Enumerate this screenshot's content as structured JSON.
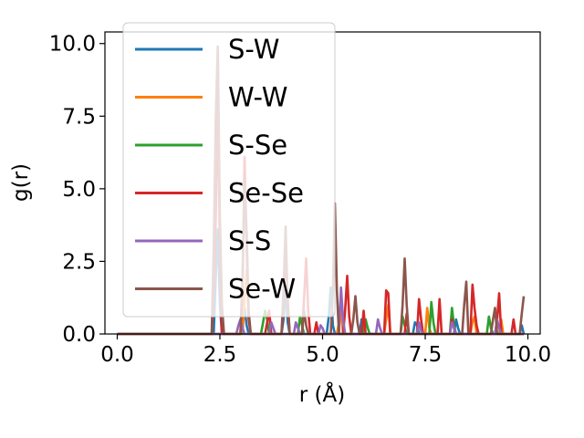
{
  "chart_data": {
    "type": "line",
    "title": "",
    "xlabel": "r (Å)",
    "ylabel": "g(r)",
    "xlim": [
      -0.3,
      10.3
    ],
    "ylim": [
      0,
      10.4
    ],
    "x_ticks": [
      0.0,
      2.5,
      5.0,
      7.5,
      10.0
    ],
    "x_tick_labels": [
      "0.0",
      "2.5",
      "5.0",
      "7.5",
      "10.0"
    ],
    "y_ticks": [
      0.0,
      2.5,
      5.0,
      7.5,
      10.0
    ],
    "y_tick_labels": [
      "0.0",
      "2.5",
      "5.0",
      "7.5",
      "10.0"
    ],
    "grid": false,
    "legend_location": "upper-left",
    "series": [
      {
        "name": "S-W",
        "color": "#1f77b4",
        "x": [
          0.0,
          2.3,
          2.35,
          2.4,
          2.45,
          2.5,
          2.55,
          2.6,
          3.0,
          3.05,
          3.1,
          3.15,
          3.2,
          4.0,
          4.05,
          4.1,
          4.15,
          4.2,
          5.1,
          5.15,
          5.2,
          5.25,
          5.3,
          5.9,
          5.95,
          6.0,
          7.2,
          7.25,
          7.3,
          7.35,
          8.2,
          8.25,
          8.3,
          8.35,
          9.8,
          9.85,
          9.9
        ],
        "y": [
          0,
          0,
          0,
          2.0,
          3.6,
          1.0,
          0,
          0,
          0,
          0.5,
          0.9,
          0.3,
          0,
          0,
          0.5,
          1.5,
          0.4,
          0,
          0,
          0.6,
          1.6,
          0.3,
          0,
          0,
          0.5,
          0,
          0,
          0.4,
          0.3,
          0,
          0,
          0.5,
          0.2,
          0,
          0,
          0.3,
          0
        ]
      },
      {
        "name": "W-W",
        "color": "#ff7f0e",
        "x": [
          0.0,
          3.0,
          3.05,
          3.1,
          3.15,
          3.2,
          3.25,
          5.3,
          5.35,
          5.4,
          5.45,
          5.5,
          6.5,
          6.55,
          6.6,
          6.65,
          7.5,
          7.55,
          7.6,
          7.65,
          8.6,
          8.65,
          8.7,
          8.75,
          9.3,
          9.35,
          9.4,
          9.9
        ],
        "y": [
          0,
          0,
          0,
          1.2,
          2.2,
          0.6,
          0,
          0,
          0,
          0.4,
          0.8,
          0,
          0,
          0.5,
          1.0,
          0,
          0,
          0.9,
          0.2,
          0,
          0,
          0.4,
          0.6,
          0,
          0,
          0.5,
          0,
          0
        ]
      },
      {
        "name": "S-Se",
        "color": "#2ca02c",
        "x": [
          0.0,
          3.5,
          3.55,
          3.6,
          3.65,
          3.7,
          4.4,
          4.45,
          4.5,
          4.55,
          6.0,
          6.05,
          6.1,
          6.15,
          6.9,
          6.95,
          7.0,
          7.05,
          7.6,
          7.65,
          7.7,
          7.75,
          8.1,
          8.15,
          8.2,
          8.25,
          9.0,
          9.05,
          9.1,
          9.15,
          9.9
        ],
        "y": [
          0,
          0,
          0.4,
          0.8,
          0.5,
          0,
          0,
          0.6,
          0.3,
          0,
          0,
          0.5,
          0.2,
          0,
          0,
          0.6,
          0.3,
          0,
          0,
          1.1,
          0.4,
          0,
          0,
          0.9,
          0.3,
          0,
          0,
          0.6,
          0.2,
          0,
          0
        ]
      },
      {
        "name": "Se-Se",
        "color": "#d62728",
        "x": [
          0.0,
          2.3,
          2.35,
          2.4,
          2.45,
          2.5,
          2.55,
          3.0,
          3.05,
          3.1,
          3.15,
          3.2,
          3.25,
          3.6,
          3.65,
          3.7,
          3.75,
          4.0,
          4.05,
          4.1,
          4.15,
          4.2,
          4.5,
          4.55,
          4.6,
          4.65,
          4.7,
          4.8,
          4.85,
          4.9,
          5.5,
          5.55,
          5.6,
          5.65,
          5.7,
          5.95,
          6.0,
          6.05,
          6.5,
          6.55,
          6.6,
          6.65,
          7.0,
          7.05,
          7.1,
          7.3,
          7.35,
          7.4,
          7.45,
          7.8,
          7.85,
          7.9,
          8.1,
          8.15,
          8.2,
          8.25,
          8.6,
          8.65,
          8.7,
          8.75,
          8.8,
          9.2,
          9.25,
          9.3,
          9.35,
          9.6,
          9.65,
          9.7,
          9.9
        ],
        "y": [
          0,
          0,
          1.5,
          4.0,
          8.5,
          2.5,
          0,
          0,
          1.5,
          6.1,
          3.0,
          0.5,
          0,
          0,
          0.4,
          0.8,
          0,
          0,
          1.0,
          3.2,
          1.2,
          0,
          0,
          1.2,
          2.6,
          0.8,
          0,
          0,
          0.4,
          0,
          0,
          0.8,
          2.0,
          0.6,
          0,
          0,
          0.8,
          0,
          0,
          1.5,
          1.4,
          0,
          0,
          0.7,
          0,
          0,
          1.2,
          0.5,
          0,
          0,
          1.2,
          0,
          0,
          0.5,
          0.2,
          0,
          0,
          1.7,
          0.9,
          0.3,
          0,
          0,
          0.5,
          1.4,
          0,
          0,
          0.5,
          0,
          0
        ]
      },
      {
        "name": "S-S",
        "color": "#9467bd",
        "x": [
          0.0,
          2.9,
          2.95,
          3.0,
          3.05,
          3.1,
          3.7,
          3.75,
          3.8,
          3.85,
          4.3,
          4.35,
          4.4,
          4.45,
          4.9,
          4.95,
          5.0,
          5.05,
          5.4,
          5.45,
          5.5,
          5.55,
          6.3,
          6.35,
          6.4,
          6.45,
          7.3,
          7.35,
          7.4,
          7.45,
          8.1,
          8.15,
          8.2,
          8.25,
          9.2,
          9.25,
          9.3,
          9.35,
          9.9
        ],
        "y": [
          0,
          0,
          0.3,
          0.5,
          0.2,
          0,
          0,
          0.4,
          0.2,
          0,
          0,
          0.4,
          0.2,
          0,
          0,
          0.3,
          0.2,
          0,
          0,
          1.6,
          0.5,
          0,
          0,
          0.5,
          0.2,
          0,
          0,
          0.4,
          0.1,
          0,
          0,
          0.4,
          0.2,
          0,
          0,
          0.5,
          0.2,
          0,
          0
        ]
      },
      {
        "name": "Se-W",
        "color": "#8c564b",
        "x": [
          0.0,
          2.3,
          2.35,
          2.4,
          2.45,
          2.5,
          2.55,
          2.6,
          3.0,
          3.05,
          3.1,
          3.15,
          3.2,
          3.25,
          4.0,
          4.05,
          4.1,
          4.15,
          4.2,
          4.5,
          4.55,
          4.6,
          4.65,
          5.2,
          5.25,
          5.3,
          5.35,
          5.4,
          5.7,
          5.75,
          5.8,
          5.85,
          5.9,
          6.9,
          6.95,
          7.0,
          7.05,
          7.1,
          8.4,
          8.45,
          8.5,
          8.55,
          9.1,
          9.15,
          9.2,
          9.25,
          9.8,
          9.85,
          9.9
        ],
        "y": [
          0,
          0,
          3.0,
          7.5,
          9.9,
          4.0,
          1.0,
          0,
          0,
          2.0,
          5.2,
          3.5,
          0.8,
          0,
          0,
          1.5,
          3.7,
          1.0,
          0,
          0,
          0.8,
          0.3,
          0,
          0,
          1.5,
          4.5,
          1.5,
          0,
          0,
          0.5,
          1.3,
          0.4,
          0,
          0,
          1.0,
          2.6,
          1.0,
          0,
          0,
          1.0,
          1.8,
          0,
          0,
          0.5,
          0.9,
          0,
          0,
          0.7,
          1.3
        ]
      }
    ]
  }
}
